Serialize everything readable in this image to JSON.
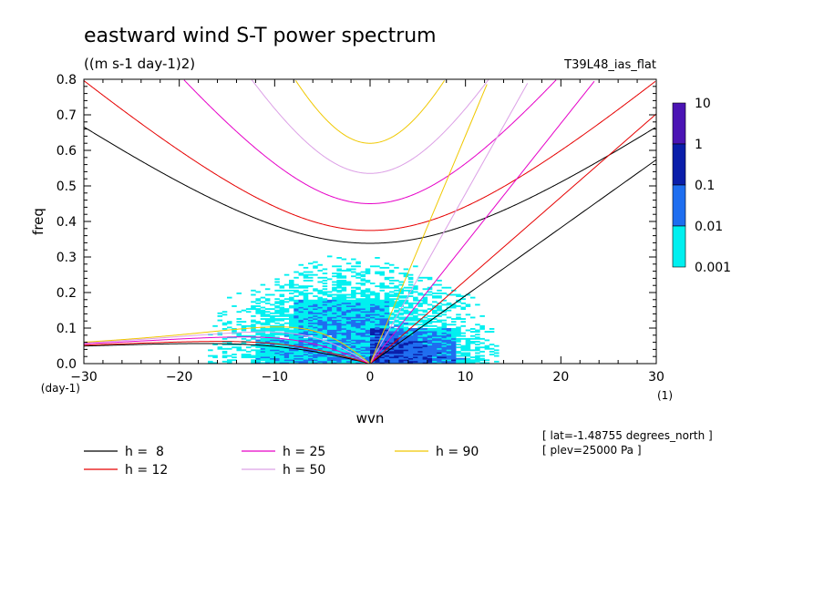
{
  "chart_data": {
    "type": "heatmap",
    "title": "eastward wind S-T power spectrum",
    "subtitle": "((m s-1 day-1)2)",
    "run_label": "T39L48_ias_flat",
    "xlabel": "wvn",
    "ylabel": "freq",
    "x_unit": "(1)",
    "y_unit": "(day-1)",
    "xlim": [
      -30,
      30
    ],
    "ylim": [
      0,
      0.8
    ],
    "x_ticks": [
      "−30",
      "−20",
      "−10",
      "0",
      "10",
      "20",
      "30"
    ],
    "y_ticks": [
      "0.0",
      "0.1",
      "0.2",
      "0.3",
      "0.4",
      "0.5",
      "0.6",
      "0.7",
      "0.8"
    ],
    "colorbar": {
      "labels": [
        "10",
        "1",
        "0.1",
        "0.01",
        "0.001"
      ],
      "colors": [
        "#4b14b4",
        "#0a1eaa",
        "#1e6ef0",
        "#00f0f0"
      ]
    },
    "dispersion_curves": [
      {
        "name": "h =  8",
        "h": 8,
        "color": "#000000"
      },
      {
        "name": "h = 12",
        "h": 12,
        "color": "#e60000"
      },
      {
        "name": "h = 25",
        "h": 25,
        "color": "#e600c8"
      },
      {
        "name": "h = 50",
        "h": 50,
        "color": "#dca0e6"
      },
      {
        "name": "h = 90",
        "h": 90,
        "color": "#f0c800"
      }
    ],
    "info": [
      "[ lat=-1.48755 degrees_north ]",
      "[ plev=25000 Pa ]"
    ]
  }
}
